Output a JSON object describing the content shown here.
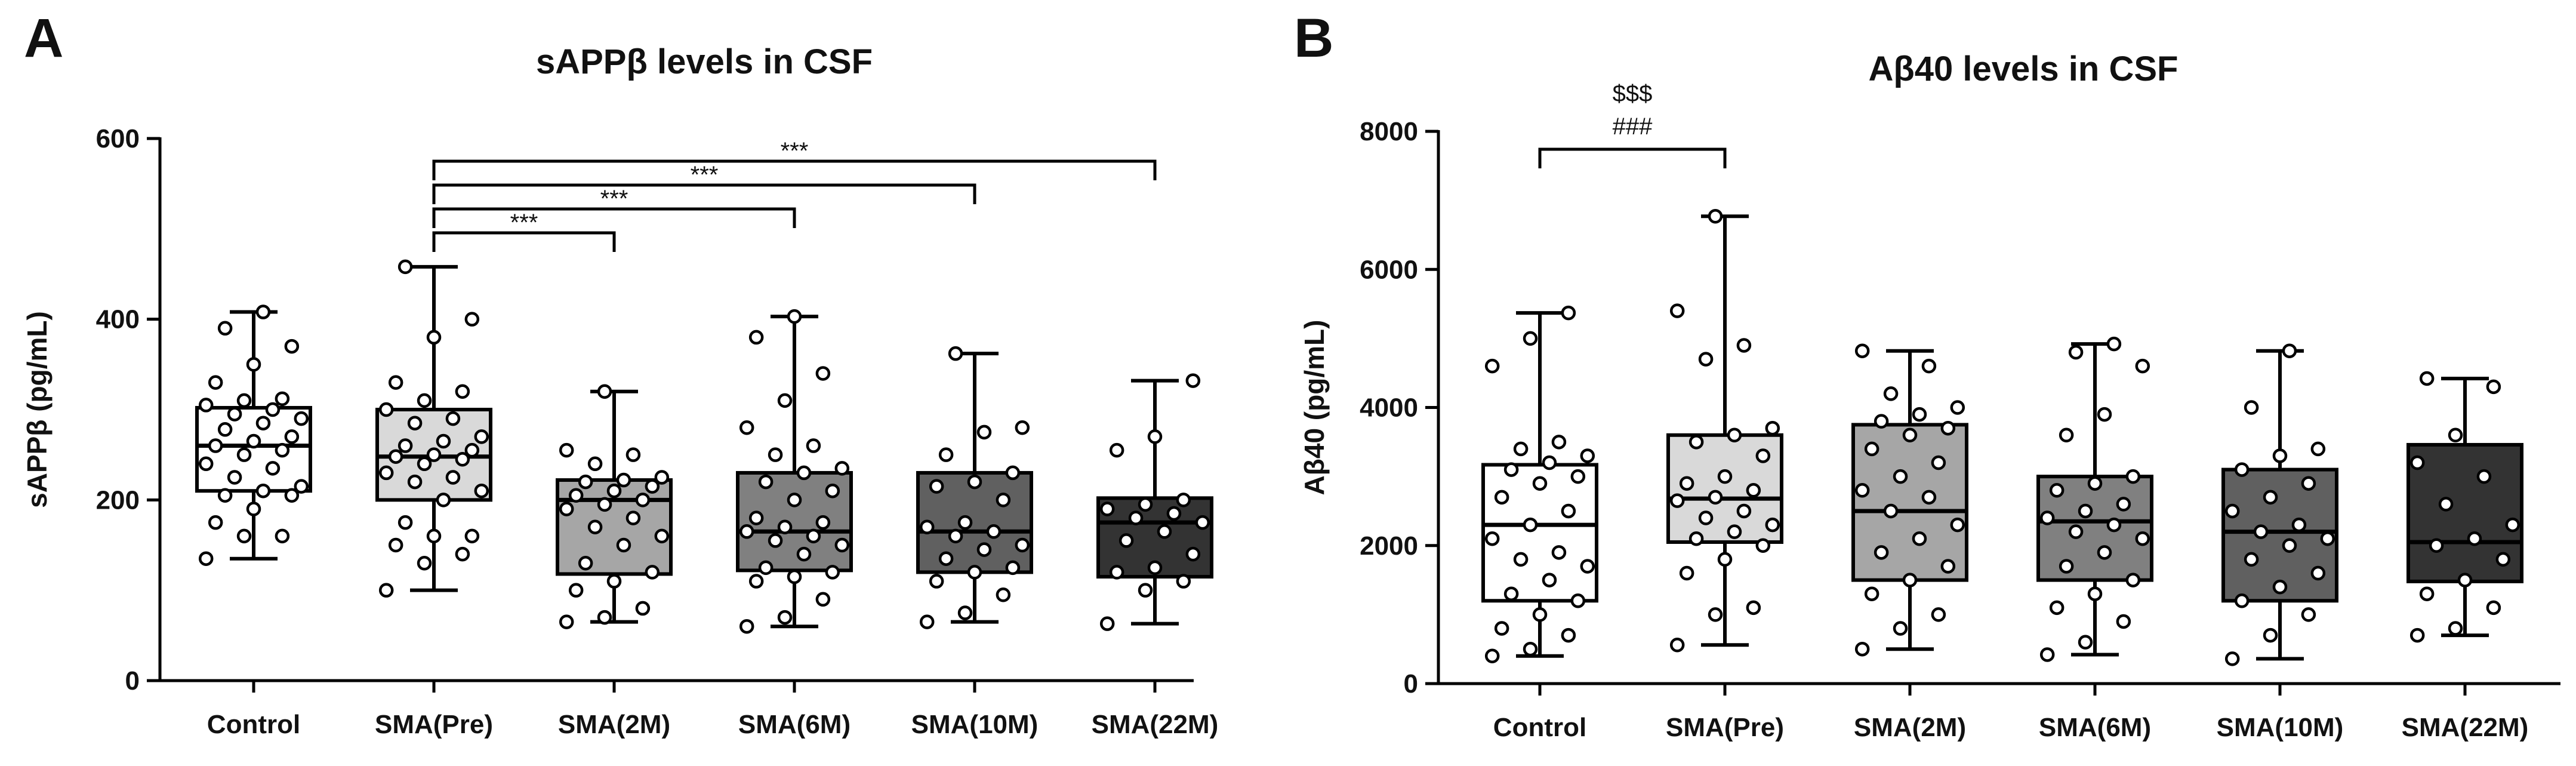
{
  "figure": {
    "panels": [
      "A",
      "B"
    ]
  },
  "chart_data": [
    {
      "panel": "A",
      "type": "box",
      "title": "sAPPβ levels in CSF",
      "xlabel": "",
      "ylabel": "sAPPβ (pg/mL)",
      "ylim": [
        0,
        600
      ],
      "yticks": [
        0,
        200,
        400,
        600
      ],
      "grid": false,
      "categories": [
        "Control",
        "SMA(Pre)",
        "SMA(2M)",
        "SMA(6M)",
        "SMA(10M)",
        "SMA(22M)"
      ],
      "box_colors": [
        "#ffffff",
        "#d9d9d9",
        "#a6a6a6",
        "#808080",
        "#606060",
        "#333333"
      ],
      "median_colors": [
        "#000000",
        "#000000",
        "#000000",
        "#000000",
        "#000000",
        "#000000"
      ],
      "series": [
        {
          "name": "Control",
          "min": 135,
          "q1": 210,
          "median": 260,
          "q3": 302,
          "max": 408,
          "points": [
            135,
            160,
            160,
            175,
            190,
            205,
            205,
            210,
            215,
            225,
            235,
            240,
            250,
            255,
            260,
            265,
            270,
            278,
            285,
            290,
            295,
            300,
            305,
            310,
            312,
            330,
            350,
            370,
            390,
            408
          ]
        },
        {
          "name": "SMA(Pre)",
          "min": 100,
          "q1": 200,
          "median": 248,
          "q3": 300,
          "max": 458,
          "points": [
            100,
            130,
            140,
            150,
            160,
            160,
            175,
            200,
            210,
            220,
            225,
            230,
            240,
            245,
            248,
            250,
            255,
            260,
            265,
            270,
            285,
            290,
            300,
            310,
            320,
            330,
            380,
            400,
            458
          ]
        },
        {
          "name": "SMA(2M)",
          "min": 65,
          "q1": 118,
          "median": 200,
          "q3": 222,
          "max": 320,
          "points": [
            65,
            70,
            80,
            100,
            110,
            120,
            130,
            150,
            160,
            170,
            180,
            190,
            195,
            200,
            205,
            210,
            215,
            220,
            222,
            225,
            240,
            250,
            255,
            320
          ]
        },
        {
          "name": "SMA(6M)",
          "min": 60,
          "q1": 122,
          "median": 165,
          "q3": 230,
          "max": 403,
          "points": [
            60,
            70,
            90,
            110,
            115,
            120,
            125,
            140,
            150,
            155,
            160,
            165,
            170,
            175,
            180,
            200,
            210,
            220,
            230,
            235,
            250,
            260,
            280,
            310,
            340,
            380,
            403
          ]
        },
        {
          "name": "SMA(10M)",
          "min": 65,
          "q1": 120,
          "median": 165,
          "q3": 230,
          "max": 362,
          "points": [
            65,
            75,
            95,
            110,
            120,
            125,
            135,
            145,
            150,
            160,
            165,
            170,
            175,
            200,
            215,
            220,
            230,
            250,
            275,
            280,
            362
          ]
        },
        {
          "name": "SMA(22M)",
          "min": 63,
          "q1": 115,
          "median": 175,
          "q3": 202,
          "max": 332,
          "points": [
            63,
            100,
            110,
            120,
            125,
            140,
            155,
            165,
            175,
            180,
            185,
            190,
            195,
            200,
            255,
            270,
            332
          ]
        }
      ],
      "annotations": [
        {
          "from": "SMA(Pre)",
          "to": "SMA(2M)",
          "level": 1,
          "text": "***"
        },
        {
          "from": "SMA(Pre)",
          "to": "SMA(6M)",
          "level": 2,
          "text": "***"
        },
        {
          "from": "SMA(Pre)",
          "to": "SMA(10M)",
          "level": 3,
          "text": "***"
        },
        {
          "from": "SMA(Pre)",
          "to": "SMA(22M)",
          "level": 4,
          "text": "***"
        }
      ]
    },
    {
      "panel": "B",
      "type": "box",
      "title": "Aβ40 levels in CSF",
      "xlabel": "",
      "ylabel": "Aβ40 (pg/mL)",
      "ylim": [
        0,
        8000
      ],
      "yticks": [
        0,
        2000,
        4000,
        6000,
        8000
      ],
      "grid": false,
      "categories": [
        "Control",
        "SMA(Pre)",
        "SMA(2M)",
        "SMA(6M)",
        "SMA(10M)",
        "SMA(22M)"
      ],
      "box_colors": [
        "#ffffff",
        "#d9d9d9",
        "#a6a6a6",
        "#808080",
        "#606060",
        "#333333"
      ],
      "median_colors": [
        "#000000",
        "#000000",
        "#000000",
        "#000000",
        "#000000",
        "#000000"
      ],
      "series": [
        {
          "name": "Control",
          "min": 400,
          "q1": 1200,
          "median": 2300,
          "q3": 3170,
          "max": 5370,
          "points": [
            400,
            500,
            700,
            800,
            1000,
            1200,
            1300,
            1500,
            1700,
            1800,
            1900,
            2100,
            2300,
            2500,
            2700,
            2900,
            3000,
            3100,
            3200,
            3300,
            3400,
            3500,
            4600,
            5000,
            5370
          ]
        },
        {
          "name": "SMA(Pre)",
          "min": 560,
          "q1": 2050,
          "median": 2680,
          "q3": 3600,
          "max": 6770,
          "points": [
            560,
            1000,
            1100,
            1600,
            1800,
            2000,
            2100,
            2200,
            2300,
            2400,
            2500,
            2650,
            2700,
            2800,
            2900,
            3000,
            3300,
            3500,
            3600,
            3700,
            4700,
            4900,
            5400,
            6770
          ]
        },
        {
          "name": "SMA(2M)",
          "min": 500,
          "q1": 1500,
          "median": 2500,
          "q3": 3750,
          "max": 4820,
          "points": [
            500,
            800,
            1000,
            1300,
            1500,
            1700,
            1900,
            2100,
            2300,
            2500,
            2700,
            2800,
            3000,
            3200,
            3400,
            3600,
            3700,
            3800,
            3900,
            4000,
            4200,
            4600,
            4820
          ]
        },
        {
          "name": "SMA(6M)",
          "min": 420,
          "q1": 1500,
          "median": 2350,
          "q3": 3000,
          "max": 4920,
          "points": [
            420,
            600,
            900,
            1100,
            1300,
            1500,
            1700,
            1900,
            2100,
            2200,
            2300,
            2400,
            2500,
            2600,
            2800,
            2900,
            3000,
            3600,
            3900,
            4600,
            4800,
            4920
          ]
        },
        {
          "name": "SMA(10M)",
          "min": 360,
          "q1": 1200,
          "median": 2200,
          "q3": 3100,
          "max": 4820,
          "points": [
            360,
            700,
            1000,
            1200,
            1400,
            1600,
            1800,
            2000,
            2100,
            2200,
            2300,
            2500,
            2700,
            2900,
            3100,
            3300,
            3400,
            4000,
            4820
          ]
        },
        {
          "name": "SMA(22M)",
          "min": 700,
          "q1": 1480,
          "median": 2050,
          "q3": 3460,
          "max": 4420,
          "points": [
            700,
            800,
            1100,
            1300,
            1500,
            1800,
            2000,
            2100,
            2300,
            2600,
            3000,
            3200,
            3600,
            4300,
            4420
          ]
        }
      ],
      "annotations": [
        {
          "from": "Control",
          "to": "SMA(Pre)",
          "level": 1,
          "text": "$$$",
          "text2": "###"
        }
      ]
    }
  ]
}
